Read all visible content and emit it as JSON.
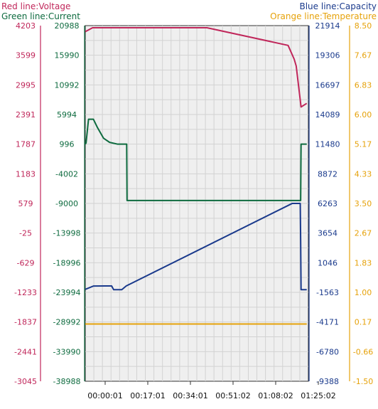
{
  "chart_data": {
    "type": "line",
    "legend": {
      "left": [
        "Red line:Voltage",
        "Green line:Current"
      ],
      "right": [
        "Blue line:Capacity",
        "Orange line:Temperature"
      ]
    },
    "axes": {
      "voltage": {
        "color": "#c0265a",
        "ticks": [
          "4203",
          "3599",
          "2995",
          "2391",
          "1787",
          "1183",
          "579",
          "-25",
          "-629",
          "-1233",
          "-1837",
          "-2441",
          "-3045"
        ],
        "range": [
          -3045,
          4203
        ]
      },
      "current": {
        "color": "#0e6b3f",
        "ticks": [
          "20988",
          "15990",
          "10992",
          "5994",
          "996",
          "-4002",
          "-9000",
          "-13998",
          "-18996",
          "-23994",
          "-28992",
          "-33990",
          "-38988"
        ],
        "range": [
          -38988,
          20988
        ]
      },
      "capacity": {
        "color": "#1a3a8c",
        "ticks": [
          "21914",
          "19306",
          "16697",
          "14089",
          "11480",
          "8872",
          "6263",
          "3654",
          "1046",
          "-1563",
          "-4171",
          "-6780",
          "-9388"
        ],
        "range": [
          -9388,
          21914
        ]
      },
      "temperature": {
        "color": "#e6a20a",
        "ticks": [
          "8.50",
          "7.67",
          "6.83",
          "6.00",
          "5.17",
          "4.33",
          "3.50",
          "2.67",
          "1.83",
          "1.00",
          "0.17",
          "-0.66",
          "-1.50"
        ],
        "range": [
          -1.5,
          8.5
        ]
      }
    },
    "x_ticks": [
      "00:00:01",
      "00:17:01",
      "00:34:01",
      "00:51:02",
      "01:08:02",
      "01:25:02"
    ],
    "x_range_seconds": [
      0,
      5500
    ],
    "grid": true,
    "series": [
      {
        "name": "Voltage",
        "axis": "voltage",
        "color": "#c0265a",
        "x": [
          1,
          180,
          480,
          3000,
          5000,
          5150,
          5200,
          5320,
          5460
        ],
        "y": [
          4080,
          4160,
          4160,
          4160,
          3800,
          3520,
          3380,
          2545,
          2618
        ]
      },
      {
        "name": "Current",
        "axis": "current",
        "color": "#0e6b3f",
        "x": [
          0,
          20,
          80,
          200,
          300,
          450,
          600,
          800,
          1000,
          1021,
          1030,
          4900,
          4910,
          5310,
          5320,
          5460
        ],
        "y": [
          996,
          1200,
          5200,
          5200,
          3800,
          2000,
          1300,
          996,
          996,
          996,
          -8500,
          -8500,
          -8500,
          -8500,
          996,
          996
        ]
      },
      {
        "name": "Capacity",
        "axis": "capacity",
        "color": "#1a3a8c",
        "x": [
          0,
          200,
          500,
          650,
          700,
          900,
          1010,
          5100,
          5300,
          5310,
          5320,
          5460
        ],
        "y": [
          -1300,
          -1010,
          -1000,
          -1000,
          -1330,
          -1330,
          -1000,
          6260,
          6260,
          3000,
          -1330,
          -1330
        ]
      },
      {
        "name": "Temperature",
        "axis": "temperature",
        "color": "#e6a20a",
        "x": [
          0,
          5460
        ],
        "y": [
          0.11,
          0.11
        ]
      }
    ]
  }
}
